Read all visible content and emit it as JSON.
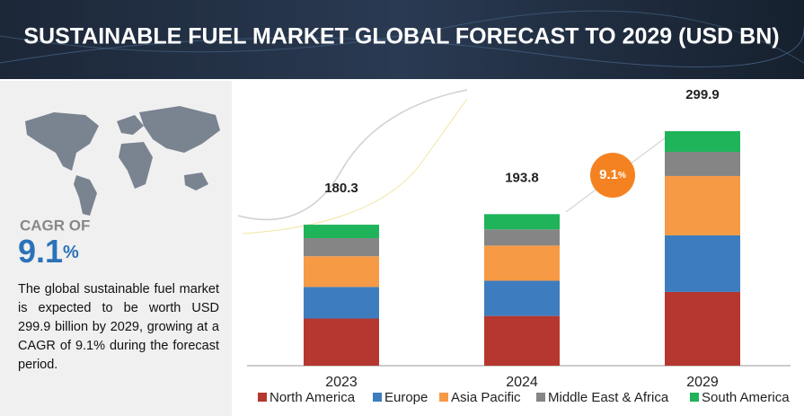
{
  "chart_data": {
    "type": "stacked-bar",
    "title": "SUSTAINABLE FUEL MARKET GLOBAL FORECAST TO 2029 (USD BN)",
    "categories": [
      "2023",
      "2024",
      "2029"
    ],
    "series": [
      {
        "name": "North America",
        "color": "#b5372f",
        "values": [
          60.3,
          63.6,
          94.3
        ]
      },
      {
        "name": "Europe",
        "color": "#3d7dbf",
        "values": [
          40.4,
          45.0,
          72.4
        ]
      },
      {
        "name": "Asia Pacific",
        "color": "#f79a45",
        "values": [
          39.3,
          45.0,
          75.8
        ]
      },
      {
        "name": "Middle East & Africa",
        "color": "#858585",
        "values": [
          23.1,
          20.7,
          31.0
        ]
      },
      {
        "name": "South America",
        "color": "#1fb35a",
        "values": [
          17.2,
          19.5,
          26.4
        ]
      }
    ],
    "totals": [
      180.3,
      193.8,
      299.9
    ],
    "badge_number": "9.1",
    "badge_unit": "%"
  },
  "sidebar": {
    "cagr_label": "CAGR OF",
    "cagr_number": "9.1",
    "cagr_unit": "%",
    "description": "The global sustainable fuel market is expected to be worth USD 299.9 billion by 2029, growing at a CAGR of 9.1% during the forecast period."
  }
}
